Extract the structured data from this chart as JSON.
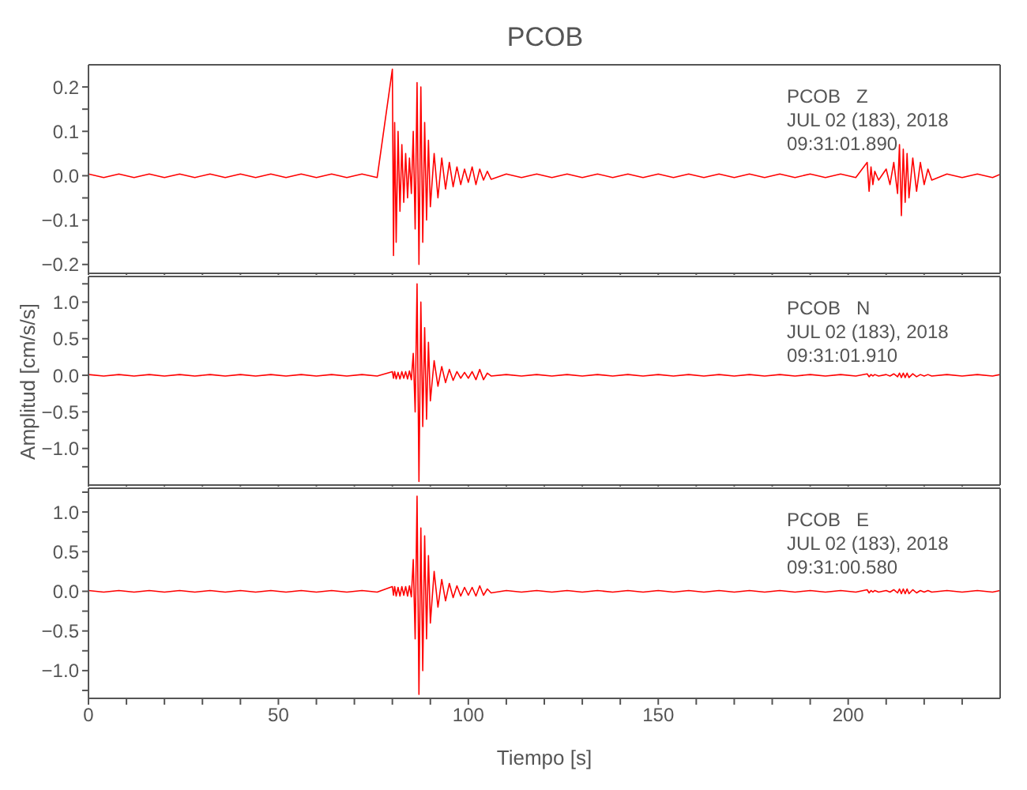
{
  "chart_data": [
    {
      "type": "line",
      "title": "PCOB",
      "annotations": [
        "PCOB   Z",
        "JUL 02 (183), 2018",
        "09:31:01.890"
      ],
      "xlim": [
        0,
        240
      ],
      "xticks": [
        {
          "value": 0,
          "label": null
        },
        {
          "value": 10,
          "label": null
        },
        {
          "value": 20,
          "label": null
        },
        {
          "value": 30,
          "label": null
        },
        {
          "value": 40,
          "label": null
        },
        {
          "value": 50,
          "label": null
        },
        {
          "value": 60,
          "label": null
        },
        {
          "value": 70,
          "label": null
        },
        {
          "value": 80,
          "label": null
        },
        {
          "value": 90,
          "label": null
        },
        {
          "value": 100,
          "label": null
        },
        {
          "value": 110,
          "label": null
        },
        {
          "value": 120,
          "label": null
        },
        {
          "value": 130,
          "label": null
        },
        {
          "value": 140,
          "label": null
        },
        {
          "value": 150,
          "label": null
        },
        {
          "value": 160,
          "label": null
        },
        {
          "value": 170,
          "label": null
        },
        {
          "value": 180,
          "label": null
        },
        {
          "value": 190,
          "label": null
        },
        {
          "value": 200,
          "label": null
        },
        {
          "value": 210,
          "label": null
        },
        {
          "value": 220,
          "label": null
        },
        {
          "value": 230,
          "label": null
        }
      ],
      "ylim": [
        -0.22,
        0.25
      ],
      "yticks": [
        {
          "value": -0.2,
          "label": "−0.2"
        },
        {
          "value": -0.15,
          "label": null
        },
        {
          "value": -0.1,
          "label": "−0.1"
        },
        {
          "value": -0.05,
          "label": null
        },
        {
          "value": 0,
          "label": "0.0"
        },
        {
          "value": 0.05,
          "label": null
        },
        {
          "value": 0.1,
          "label": "0.1"
        },
        {
          "value": 0.15,
          "label": null
        },
        {
          "value": 0.2,
          "label": "0.2"
        }
      ],
      "tick_labels": "y",
      "x": [
        0,
        4,
        8,
        12,
        16,
        20,
        24,
        28,
        32,
        36,
        40,
        44,
        48,
        52,
        56,
        60,
        64,
        68,
        72,
        76,
        80,
        80.3,
        80.6,
        81,
        81.5,
        82,
        82.5,
        83,
        83.5,
        84,
        84.5,
        85,
        85.5,
        86,
        86.5,
        87,
        87.5,
        88,
        88.5,
        89,
        89.5,
        90,
        91,
        92,
        93,
        94,
        95,
        96,
        97,
        98,
        99,
        100,
        101,
        102,
        103,
        104,
        105,
        106,
        110,
        114,
        118,
        122,
        126,
        130,
        134,
        138,
        142,
        146,
        150,
        154,
        158,
        162,
        166,
        170,
        174,
        178,
        182,
        186,
        190,
        194,
        198,
        202,
        205,
        205.5,
        206,
        206.5,
        207,
        208,
        210,
        211,
        212,
        213,
        213.5,
        214,
        214.5,
        215,
        215.5,
        216,
        217,
        218,
        219,
        220,
        221,
        222,
        226,
        230,
        234,
        238,
        240
      ],
      "series": [
        {
          "color": "#ff0000",
          "values": [
            0.004,
            -0.004,
            0.004,
            -0.004,
            0.004,
            -0.004,
            0.004,
            -0.004,
            0.004,
            -0.004,
            0.004,
            -0.004,
            0.004,
            -0.004,
            0.004,
            -0.004,
            0.004,
            -0.004,
            0.004,
            -0.004,
            0.24,
            -0.18,
            0.12,
            -0.15,
            0.1,
            -0.08,
            0.07,
            -0.06,
            0.05,
            -0.05,
            0.04,
            -0.04,
            0.1,
            -0.12,
            0.21,
            -0.2,
            0.2,
            -0.15,
            0.12,
            -0.1,
            0.08,
            -0.07,
            0.05,
            -0.05,
            0.04,
            -0.03,
            0.03,
            -0.025,
            0.02,
            -0.02,
            0.015,
            -0.015,
            0.02,
            -0.02,
            0.015,
            -0.01,
            0.01,
            -0.008,
            0.004,
            -0.004,
            0.004,
            -0.004,
            0.004,
            -0.004,
            0.004,
            -0.004,
            0.004,
            -0.004,
            0.004,
            -0.004,
            0.004,
            -0.004,
            0.004,
            -0.004,
            0.004,
            -0.004,
            0.004,
            -0.004,
            0.004,
            -0.004,
            0.004,
            -0.004,
            0.03,
            -0.035,
            0.02,
            -0.02,
            0.01,
            -0.01,
            0.015,
            -0.02,
            0.03,
            -0.04,
            0.07,
            -0.09,
            0.06,
            -0.06,
            0.05,
            -0.05,
            0.04,
            -0.035,
            0.03,
            -0.02,
            0.015,
            -0.01,
            0.004,
            -0.004,
            0.004,
            -0.004,
            0.003
          ]
        }
      ]
    },
    {
      "type": "line",
      "ylabel": "Amplitud [cm/s/s]",
      "annotations": [
        "PCOB   N",
        "JUL 02 (183), 2018",
        "09:31:01.910"
      ],
      "xlim": [
        0,
        240
      ],
      "xticks": [
        {
          "value": 0,
          "label": null
        },
        {
          "value": 10,
          "label": null
        },
        {
          "value": 20,
          "label": null
        },
        {
          "value": 30,
          "label": null
        },
        {
          "value": 40,
          "label": null
        },
        {
          "value": 50,
          "label": null
        },
        {
          "value": 60,
          "label": null
        },
        {
          "value": 70,
          "label": null
        },
        {
          "value": 80,
          "label": null
        },
        {
          "value": 90,
          "label": null
        },
        {
          "value": 100,
          "label": null
        },
        {
          "value": 110,
          "label": null
        },
        {
          "value": 120,
          "label": null
        },
        {
          "value": 130,
          "label": null
        },
        {
          "value": 140,
          "label": null
        },
        {
          "value": 150,
          "label": null
        },
        {
          "value": 160,
          "label": null
        },
        {
          "value": 170,
          "label": null
        },
        {
          "value": 180,
          "label": null
        },
        {
          "value": 190,
          "label": null
        },
        {
          "value": 200,
          "label": null
        },
        {
          "value": 210,
          "label": null
        },
        {
          "value": 220,
          "label": null
        },
        {
          "value": 230,
          "label": null
        }
      ],
      "ylim": [
        -1.5,
        1.35
      ],
      "yticks": [
        {
          "value": -1.25,
          "label": null
        },
        {
          "value": -1,
          "label": "−1.0"
        },
        {
          "value": -0.75,
          "label": null
        },
        {
          "value": -0.5,
          "label": "−0.5"
        },
        {
          "value": -0.25,
          "label": null
        },
        {
          "value": 0,
          "label": "0.0"
        },
        {
          "value": 0.25,
          "label": null
        },
        {
          "value": 0.5,
          "label": "0.5"
        },
        {
          "value": 0.75,
          "label": null
        },
        {
          "value": 1,
          "label": "1.0"
        },
        {
          "value": 1.25,
          "label": null
        }
      ],
      "tick_labels": "y",
      "x": [
        0,
        4,
        8,
        12,
        16,
        20,
        24,
        28,
        32,
        36,
        40,
        44,
        48,
        52,
        56,
        60,
        64,
        68,
        72,
        76,
        80,
        80.3,
        80.6,
        81,
        81.5,
        82,
        82.5,
        83,
        83.5,
        84,
        84.5,
        85,
        85.5,
        86,
        86.5,
        87,
        87.5,
        88,
        88.5,
        89,
        89.5,
        90,
        91,
        92,
        93,
        94,
        95,
        96,
        97,
        98,
        99,
        100,
        101,
        102,
        103,
        104,
        105,
        106,
        110,
        114,
        118,
        122,
        126,
        130,
        134,
        138,
        142,
        146,
        150,
        154,
        158,
        162,
        166,
        170,
        174,
        178,
        182,
        186,
        190,
        194,
        198,
        202,
        205,
        205.5,
        206,
        206.5,
        207,
        208,
        210,
        211,
        212,
        213,
        213.5,
        214,
        214.5,
        215,
        215.5,
        216,
        217,
        218,
        219,
        220,
        221,
        222,
        226,
        230,
        234,
        238,
        240
      ],
      "series": [
        {
          "color": "#ff0000",
          "values": [
            0.01,
            -0.01,
            0.01,
            -0.01,
            0.01,
            -0.01,
            0.01,
            -0.01,
            0.01,
            -0.01,
            0.01,
            -0.01,
            0.01,
            -0.01,
            0.01,
            -0.01,
            0.01,
            -0.01,
            0.01,
            -0.01,
            0.05,
            -0.04,
            0.05,
            -0.05,
            0.04,
            -0.05,
            0.05,
            -0.04,
            0.05,
            -0.05,
            0.06,
            -0.06,
            0.3,
            -0.5,
            1.25,
            -1.45,
            1.0,
            -0.7,
            0.65,
            -0.6,
            0.45,
            -0.35,
            0.2,
            -0.15,
            0.12,
            -0.1,
            0.08,
            -0.07,
            0.05,
            -0.04,
            0.04,
            -0.04,
            0.05,
            -0.06,
            0.08,
            -0.06,
            0.03,
            -0.01,
            0.01,
            -0.01,
            0.01,
            -0.01,
            0.01,
            -0.01,
            0.01,
            -0.01,
            0.01,
            -0.01,
            0.01,
            -0.01,
            0.01,
            -0.01,
            0.01,
            -0.01,
            0.01,
            -0.01,
            0.01,
            -0.01,
            0.01,
            -0.01,
            0.01,
            -0.01,
            0.02,
            -0.02,
            0.01,
            -0.01,
            0.01,
            -0.01,
            0.01,
            -0.01,
            0.02,
            -0.02,
            0.03,
            -0.03,
            0.03,
            -0.03,
            0.03,
            -0.03,
            0.02,
            -0.02,
            0.01,
            -0.01,
            0.01,
            -0.01,
            0.01,
            -0.01,
            0.01,
            -0.01,
            0.01
          ]
        }
      ]
    },
    {
      "type": "line",
      "xlabel": "Tiempo [s]",
      "annotations": [
        "PCOB   E",
        "JUL 02 (183), 2018",
        "09:31:00.580"
      ],
      "xlim": [
        0,
        240
      ],
      "xticks": [
        {
          "value": 0,
          "label": "0"
        },
        {
          "value": 10,
          "label": null
        },
        {
          "value": 20,
          "label": null
        },
        {
          "value": 30,
          "label": null
        },
        {
          "value": 40,
          "label": null
        },
        {
          "value": 50,
          "label": "50"
        },
        {
          "value": 60,
          "label": null
        },
        {
          "value": 70,
          "label": null
        },
        {
          "value": 80,
          "label": null
        },
        {
          "value": 90,
          "label": null
        },
        {
          "value": 100,
          "label": "100"
        },
        {
          "value": 110,
          "label": null
        },
        {
          "value": 120,
          "label": null
        },
        {
          "value": 130,
          "label": null
        },
        {
          "value": 140,
          "label": null
        },
        {
          "value": 150,
          "label": "150"
        },
        {
          "value": 160,
          "label": null
        },
        {
          "value": 170,
          "label": null
        },
        {
          "value": 180,
          "label": null
        },
        {
          "value": 190,
          "label": null
        },
        {
          "value": 200,
          "label": "200"
        },
        {
          "value": 210,
          "label": null
        },
        {
          "value": 220,
          "label": null
        },
        {
          "value": 230,
          "label": null
        }
      ],
      "ylim": [
        -1.35,
        1.3
      ],
      "yticks": [
        {
          "value": -1.25,
          "label": null
        },
        {
          "value": -1,
          "label": "−1.0"
        },
        {
          "value": -0.75,
          "label": null
        },
        {
          "value": -0.5,
          "label": "−0.5"
        },
        {
          "value": -0.25,
          "label": null
        },
        {
          "value": 0,
          "label": "0.0"
        },
        {
          "value": 0.25,
          "label": null
        },
        {
          "value": 0.5,
          "label": "0.5"
        },
        {
          "value": 0.75,
          "label": null
        },
        {
          "value": 1,
          "label": "1.0"
        },
        {
          "value": 1.25,
          "label": null
        }
      ],
      "x": [
        0,
        4,
        8,
        12,
        16,
        20,
        24,
        28,
        32,
        36,
        40,
        44,
        48,
        52,
        56,
        60,
        64,
        68,
        72,
        76,
        80,
        80.3,
        80.6,
        81,
        81.5,
        82,
        82.5,
        83,
        83.5,
        84,
        84.5,
        85,
        85.5,
        86,
        86.5,
        87,
        87.5,
        88,
        88.5,
        89,
        89.5,
        90,
        91,
        92,
        93,
        94,
        95,
        96,
        97,
        98,
        99,
        100,
        101,
        102,
        103,
        104,
        105,
        106,
        110,
        114,
        118,
        122,
        126,
        130,
        134,
        138,
        142,
        146,
        150,
        154,
        158,
        162,
        166,
        170,
        174,
        178,
        182,
        186,
        190,
        194,
        198,
        202,
        205,
        205.5,
        206,
        206.5,
        207,
        208,
        210,
        211,
        212,
        213,
        213.5,
        214,
        214.5,
        215,
        215.5,
        216,
        217,
        218,
        219,
        220,
        221,
        222,
        226,
        230,
        234,
        238,
        240
      ],
      "series": [
        {
          "color": "#ff0000",
          "values": [
            0.01,
            -0.01,
            0.01,
            -0.01,
            0.01,
            -0.01,
            0.01,
            -0.01,
            0.01,
            -0.01,
            0.01,
            -0.01,
            0.01,
            -0.01,
            0.01,
            -0.01,
            0.01,
            -0.01,
            0.01,
            -0.01,
            0.06,
            -0.05,
            0.06,
            -0.06,
            0.05,
            -0.06,
            0.06,
            -0.05,
            0.06,
            -0.06,
            0.07,
            -0.07,
            0.4,
            -0.6,
            1.2,
            -1.3,
            0.8,
            -1.0,
            0.7,
            -0.6,
            0.45,
            -0.4,
            0.25,
            -0.2,
            0.15,
            -0.12,
            0.1,
            -0.08,
            0.07,
            -0.06,
            0.05,
            -0.05,
            0.05,
            -0.06,
            0.07,
            -0.05,
            0.03,
            -0.02,
            0.01,
            -0.01,
            0.01,
            -0.01,
            0.01,
            -0.01,
            0.01,
            -0.01,
            0.01,
            -0.01,
            0.01,
            -0.01,
            0.01,
            -0.01,
            0.01,
            -0.01,
            0.01,
            -0.01,
            0.01,
            -0.01,
            0.01,
            -0.01,
            0.01,
            -0.01,
            0.02,
            -0.02,
            0.01,
            -0.01,
            0.01,
            -0.01,
            0.01,
            -0.01,
            0.02,
            -0.02,
            0.03,
            -0.03,
            0.03,
            -0.03,
            0.03,
            -0.03,
            0.02,
            -0.02,
            0.01,
            -0.01,
            0.01,
            -0.01,
            0.01,
            -0.01,
            0.01,
            -0.01,
            0.01
          ]
        }
      ]
    }
  ]
}
